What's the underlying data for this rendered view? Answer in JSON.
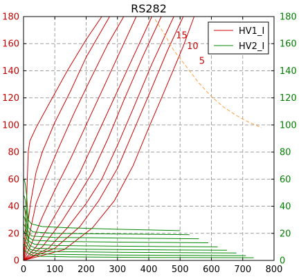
{
  "chart_data": {
    "type": "line",
    "title": "RS282",
    "xlim": [
      0,
      800
    ],
    "ylim_left": [
      0,
      180
    ],
    "ylim_right": [
      0,
      180
    ],
    "x_ticks": [
      0,
      100,
      200,
      300,
      400,
      500,
      600,
      700,
      800
    ],
    "y_ticks": [
      0,
      20,
      40,
      60,
      80,
      100,
      120,
      140,
      160,
      180
    ],
    "grid": true,
    "legend_position": "top-right",
    "colors": {
      "hv1": "#cc0000",
      "hv2": "#008800",
      "limit": "#ffa040",
      "left_ticks": "#c00000",
      "right_ticks": "#008000"
    },
    "series": [
      {
        "name": "HV1_I",
        "color": "#cc0000",
        "curves": [
          [
            [
              0,
              0
            ],
            [
              5,
              20
            ],
            [
              10,
              45
            ],
            [
              15,
              80
            ],
            [
              20,
              88
            ],
            [
              40,
              98
            ],
            [
              80,
              115
            ],
            [
              140,
              140
            ],
            [
              200,
              163
            ],
            [
              250,
              180
            ]
          ],
          [
            [
              0,
              0
            ],
            [
              10,
              20
            ],
            [
              22,
              42
            ],
            [
              40,
              65
            ],
            [
              60,
              80
            ],
            [
              100,
              102
            ],
            [
              150,
              125
            ],
            [
              200,
              150
            ],
            [
              250,
              170
            ],
            [
              275,
              180
            ]
          ],
          [
            [
              0,
              0
            ],
            [
              15,
              15
            ],
            [
              40,
              42
            ],
            [
              70,
              60
            ],
            [
              110,
              82
            ],
            [
              160,
              108
            ],
            [
              210,
              132
            ],
            [
              270,
              160
            ],
            [
              320,
              180
            ]
          ],
          [
            [
              0,
              0
            ],
            [
              25,
              12
            ],
            [
              60,
              32
            ],
            [
              100,
              52
            ],
            [
              150,
              75
            ],
            [
              200,
              100
            ],
            [
              260,
              130
            ],
            [
              320,
              160
            ],
            [
              360,
              180
            ]
          ],
          [
            [
              0,
              0
            ],
            [
              40,
              10
            ],
            [
              80,
              25
            ],
            [
              130,
              45
            ],
            [
              180,
              65
            ],
            [
              230,
              90
            ],
            [
              280,
              115
            ],
            [
              340,
              145
            ],
            [
              410,
              180
            ]
          ],
          [
            [
              0,
              0
            ],
            [
              60,
              10
            ],
            [
              120,
              28
            ],
            [
              170,
              46
            ],
            [
              220,
              65
            ],
            [
              270,
              90
            ],
            [
              320,
              118
            ],
            [
              380,
              150
            ],
            [
              440,
              180
            ]
          ],
          [
            [
              0,
              0
            ],
            [
              80,
              9
            ],
            [
              140,
              24
            ],
            [
              200,
              42
            ],
            [
              250,
              60
            ],
            [
              300,
              85
            ],
            [
              350,
              112
            ],
            [
              410,
              145
            ],
            [
              480,
              180
            ]
          ],
          [
            [
              0,
              0
            ],
            [
              100,
              9
            ],
            [
              180,
              25
            ],
            [
              240,
              44
            ],
            [
              300,
              68
            ],
            [
              350,
              95
            ],
            [
              400,
              122
            ],
            [
              460,
              155
            ],
            [
              510,
              180
            ]
          ],
          [
            [
              0,
              0
            ],
            [
              130,
              8
            ],
            [
              220,
              24
            ],
            [
              290,
              44
            ],
            [
              350,
              70
            ],
            [
              400,
              98
            ],
            [
              450,
              125
            ],
            [
              510,
              158
            ],
            [
              545,
              180
            ]
          ]
        ]
      },
      {
        "name": "HV2_I",
        "color": "#008800",
        "curves": [
          [
            [
              0,
              60
            ],
            [
              3,
              59
            ],
            [
              6,
              56
            ],
            [
              10,
              48
            ],
            [
              15,
              30
            ],
            [
              25,
              27
            ],
            [
              60,
              25
            ],
            [
              150,
              24
            ],
            [
              300,
              23
            ],
            [
              500,
              22
            ]
          ],
          [
            [
              0,
              48
            ],
            [
              3,
              47
            ],
            [
              6,
              44
            ],
            [
              10,
              36
            ],
            [
              16,
              24
            ],
            [
              30,
              21
            ],
            [
              100,
              20
            ],
            [
              300,
              19.5
            ],
            [
              530,
              19
            ]
          ],
          [
            [
              0,
              40
            ],
            [
              4,
              38
            ],
            [
              8,
              32
            ],
            [
              14,
              22
            ],
            [
              25,
              18
            ],
            [
              100,
              17
            ],
            [
              300,
              16.5
            ],
            [
              560,
              16
            ]
          ],
          [
            [
              0,
              33
            ],
            [
              4,
              31
            ],
            [
              9,
              25
            ],
            [
              16,
              17
            ],
            [
              30,
              15
            ],
            [
              100,
              14
            ],
            [
              300,
              13.5
            ],
            [
              590,
              13
            ]
          ],
          [
            [
              0,
              27
            ],
            [
              5,
              25
            ],
            [
              10,
              20
            ],
            [
              18,
              14
            ],
            [
              35,
              12
            ],
            [
              100,
              11
            ],
            [
              300,
              10.5
            ],
            [
              620,
              10
            ]
          ],
          [
            [
              0,
              22
            ],
            [
              5,
              20
            ],
            [
              11,
              16
            ],
            [
              20,
              11
            ],
            [
              40,
              9
            ],
            [
              100,
              8.5
            ],
            [
              300,
              8
            ],
            [
              650,
              7.5
            ]
          ],
          [
            [
              0,
              17
            ],
            [
              5,
              15
            ],
            [
              12,
              12
            ],
            [
              22,
              8
            ],
            [
              45,
              7
            ],
            [
              100,
              6.5
            ],
            [
              300,
              6
            ],
            [
              680,
              5.5
            ]
          ],
          [
            [
              0,
              12
            ],
            [
              6,
              11
            ],
            [
              13,
              8.5
            ],
            [
              24,
              6
            ],
            [
              50,
              5
            ],
            [
              100,
              4.5
            ],
            [
              300,
              4
            ],
            [
              710,
              3.5
            ]
          ],
          [
            [
              0,
              8
            ],
            [
              6,
              7
            ],
            [
              14,
              5.5
            ],
            [
              26,
              4
            ],
            [
              60,
              3
            ],
            [
              150,
              2.6
            ],
            [
              400,
              2.2
            ],
            [
              735,
              2
            ]
          ]
        ]
      }
    ],
    "limit_curve": {
      "color": "#ffa040",
      "points": [
        [
          420,
          178
        ],
        [
          450,
          167
        ],
        [
          480,
          155
        ],
        [
          520,
          143
        ],
        [
          560,
          131
        ],
        [
          600,
          121
        ],
        [
          640,
          113
        ],
        [
          680,
          107
        ],
        [
          720,
          102
        ],
        [
          760,
          98
        ]
      ]
    },
    "annotations": [
      {
        "text": "15",
        "x": 505,
        "y": 164
      },
      {
        "text": "10",
        "x": 540,
        "y": 156
      },
      {
        "text": "5",
        "x": 570,
        "y": 145
      }
    ]
  }
}
